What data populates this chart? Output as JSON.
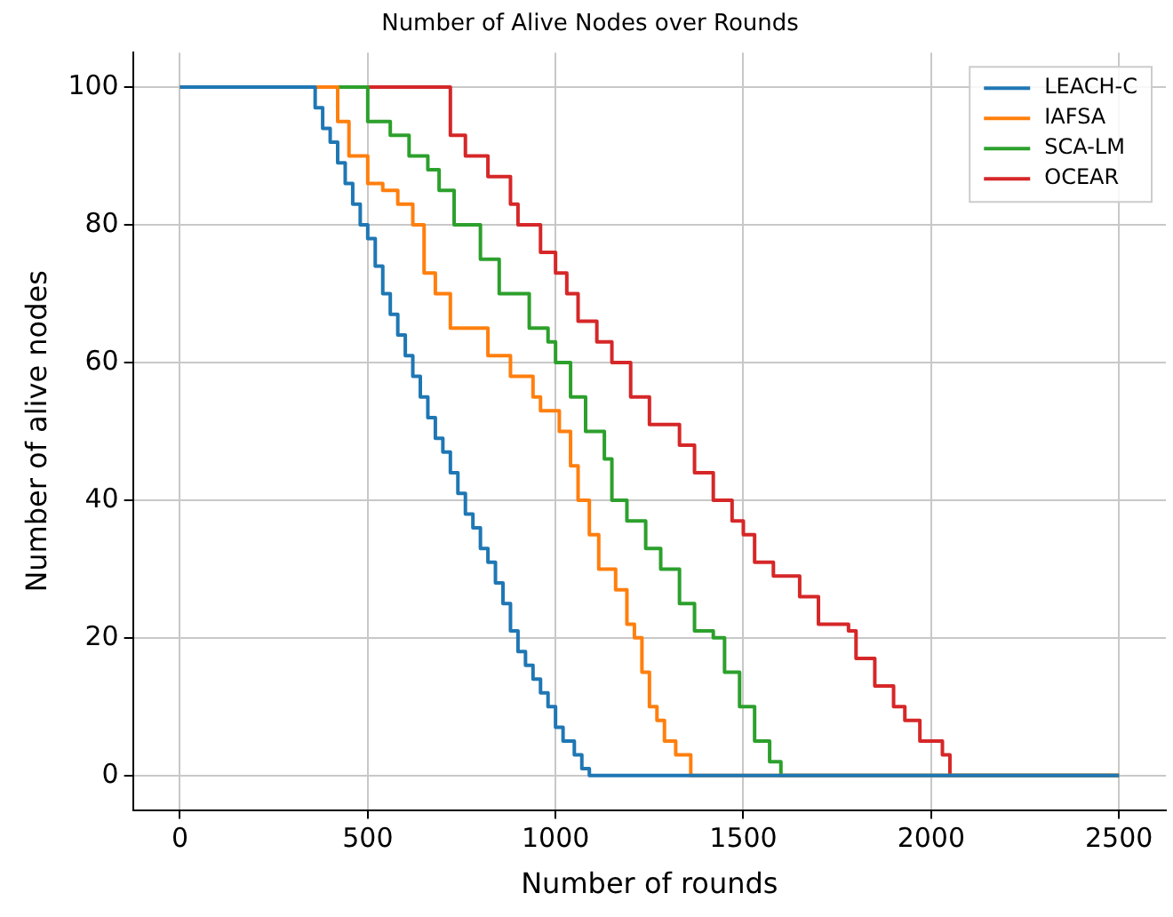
{
  "chart_data": {
    "type": "step",
    "title": "Number of Alive Nodes over Rounds",
    "xlabel": "Number of rounds",
    "ylabel": "Number of alive nodes",
    "xlim": [
      -125,
      2625
    ],
    "xticks": [
      0,
      500,
      1000,
      1500,
      2000,
      2500
    ],
    "ylim": [
      -5,
      105
    ],
    "yticks": [
      0,
      20,
      40,
      60,
      80,
      100
    ],
    "grid": true,
    "legend": "top right",
    "series": [
      {
        "name": "LEACH-C",
        "color": "#1f77b4",
        "x": [
          0,
          350,
          360,
          380,
          400,
          420,
          440,
          460,
          480,
          500,
          520,
          540,
          560,
          580,
          600,
          620,
          640,
          660,
          680,
          700,
          720,
          740,
          760,
          780,
          800,
          820,
          840,
          860,
          880,
          900,
          920,
          940,
          960,
          980,
          1000,
          1020,
          1050,
          1070,
          1090,
          2500
        ],
        "values": [
          100,
          100,
          97,
          94,
          92,
          89,
          86,
          83,
          80,
          78,
          74,
          70,
          67,
          64,
          61,
          58,
          55,
          52,
          49,
          47,
          44,
          41,
          38,
          36,
          33,
          31,
          28,
          25,
          21,
          18,
          16,
          14,
          12,
          10,
          7,
          5,
          3,
          1,
          0,
          0
        ]
      },
      {
        "name": "IAFSA",
        "color": "#ff7f0e",
        "x": [
          0,
          400,
          420,
          450,
          500,
          540,
          580,
          620,
          650,
          680,
          720,
          800,
          820,
          880,
          940,
          960,
          1000,
          1010,
          1040,
          1060,
          1090,
          1115,
          1160,
          1190,
          1210,
          1230,
          1250,
          1270,
          1290,
          1320,
          1360,
          2500
        ],
        "values": [
          100,
          100,
          95,
          90,
          86,
          85,
          83,
          80,
          73,
          70,
          65,
          65,
          61,
          58,
          55,
          53,
          53,
          50,
          45,
          40,
          35,
          30,
          27,
          22,
          20,
          15,
          10,
          8,
          5,
          3,
          0,
          0
        ]
      },
      {
        "name": "SCA-LM",
        "color": "#2ca02c",
        "x": [
          0,
          450,
          500,
          560,
          610,
          660,
          690,
          730,
          800,
          850,
          930,
          980,
          1000,
          1040,
          1080,
          1130,
          1150,
          1190,
          1240,
          1280,
          1330,
          1370,
          1420,
          1450,
          1490,
          1530,
          1570,
          1600,
          2500
        ],
        "values": [
          100,
          100,
          95,
          93,
          90,
          88,
          85,
          80,
          75,
          70,
          65,
          63,
          60,
          55,
          50,
          46,
          40,
          37,
          33,
          30,
          25,
          21,
          20,
          15,
          10,
          5,
          2,
          0,
          0
        ]
      },
      {
        "name": "OCEAR",
        "color": "#d62728",
        "x": [
          0,
          700,
          720,
          760,
          820,
          880,
          900,
          960,
          1000,
          1030,
          1060,
          1110,
          1150,
          1200,
          1250,
          1330,
          1370,
          1420,
          1470,
          1500,
          1530,
          1580,
          1650,
          1700,
          1780,
          1800,
          1850,
          1900,
          1930,
          1970,
          2030,
          2050,
          2500
        ],
        "values": [
          100,
          100,
          93,
          90,
          87,
          83,
          80,
          76,
          73,
          70,
          66,
          63,
          60,
          55,
          51,
          48,
          44,
          40,
          37,
          35,
          31,
          29,
          26,
          22,
          21,
          17,
          13,
          10,
          8,
          5,
          3,
          0,
          0
        ]
      }
    ]
  }
}
